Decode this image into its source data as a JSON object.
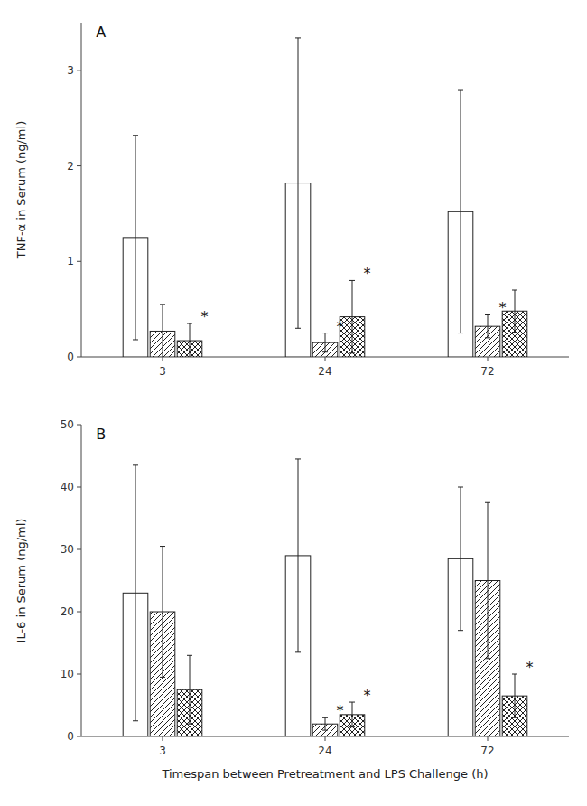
{
  "chart_data": [
    {
      "type": "bar",
      "title": "A",
      "ylabel": "TNF-α in Serum (ng/ml)",
      "categories": [
        "3",
        "24",
        "72"
      ],
      "ylim": [
        0,
        3.5
      ],
      "yticks": [
        0,
        1,
        2,
        3
      ],
      "grid": false,
      "series": [
        {
          "color": "#ffffff",
          "values": [
            1.25,
            1.82,
            1.52
          ],
          "errors": [
            1.07,
            1.52,
            1.27
          ],
          "annotations": [
            null,
            null,
            null
          ]
        },
        {
          "color": "#ffffff",
          "values": [
            0.27,
            0.15,
            0.32
          ],
          "errors": [
            0.28,
            0.1,
            0.12
          ],
          "annotations": [
            null,
            "*",
            "*"
          ]
        },
        {
          "color": "#ffffff",
          "values": [
            0.17,
            0.42,
            0.48
          ],
          "errors": [
            0.18,
            0.38,
            0.22
          ],
          "annotations": [
            "*",
            "*",
            null
          ]
        }
      ]
    },
    {
      "type": "bar",
      "title": "B",
      "ylabel": "IL-6 in Serum (ng/ml)",
      "xlabel": "Timespan between Pretreatment and LPS Challenge (h)",
      "categories": [
        "3",
        "24",
        "72"
      ],
      "ylim": [
        0,
        50
      ],
      "yticks": [
        0,
        10,
        20,
        30,
        40,
        50
      ],
      "grid": false,
      "series": [
        {
          "color": "#ffffff",
          "values": [
            23.0,
            29.0,
            28.5
          ],
          "errors": [
            20.5,
            15.5,
            11.5
          ],
          "annotations": [
            null,
            null,
            null
          ]
        },
        {
          "color": "#ffffff",
          "values": [
            20.0,
            2.0,
            25.0
          ],
          "errors": [
            10.5,
            1.0,
            12.5
          ],
          "annotations": [
            null,
            "*",
            null
          ]
        },
        {
          "color": "#ffffff",
          "values": [
            7.5,
            3.5,
            6.5
          ],
          "errors": [
            5.5,
            2.0,
            3.5
          ],
          "annotations": [
            null,
            "*",
            "*"
          ]
        }
      ]
    }
  ]
}
